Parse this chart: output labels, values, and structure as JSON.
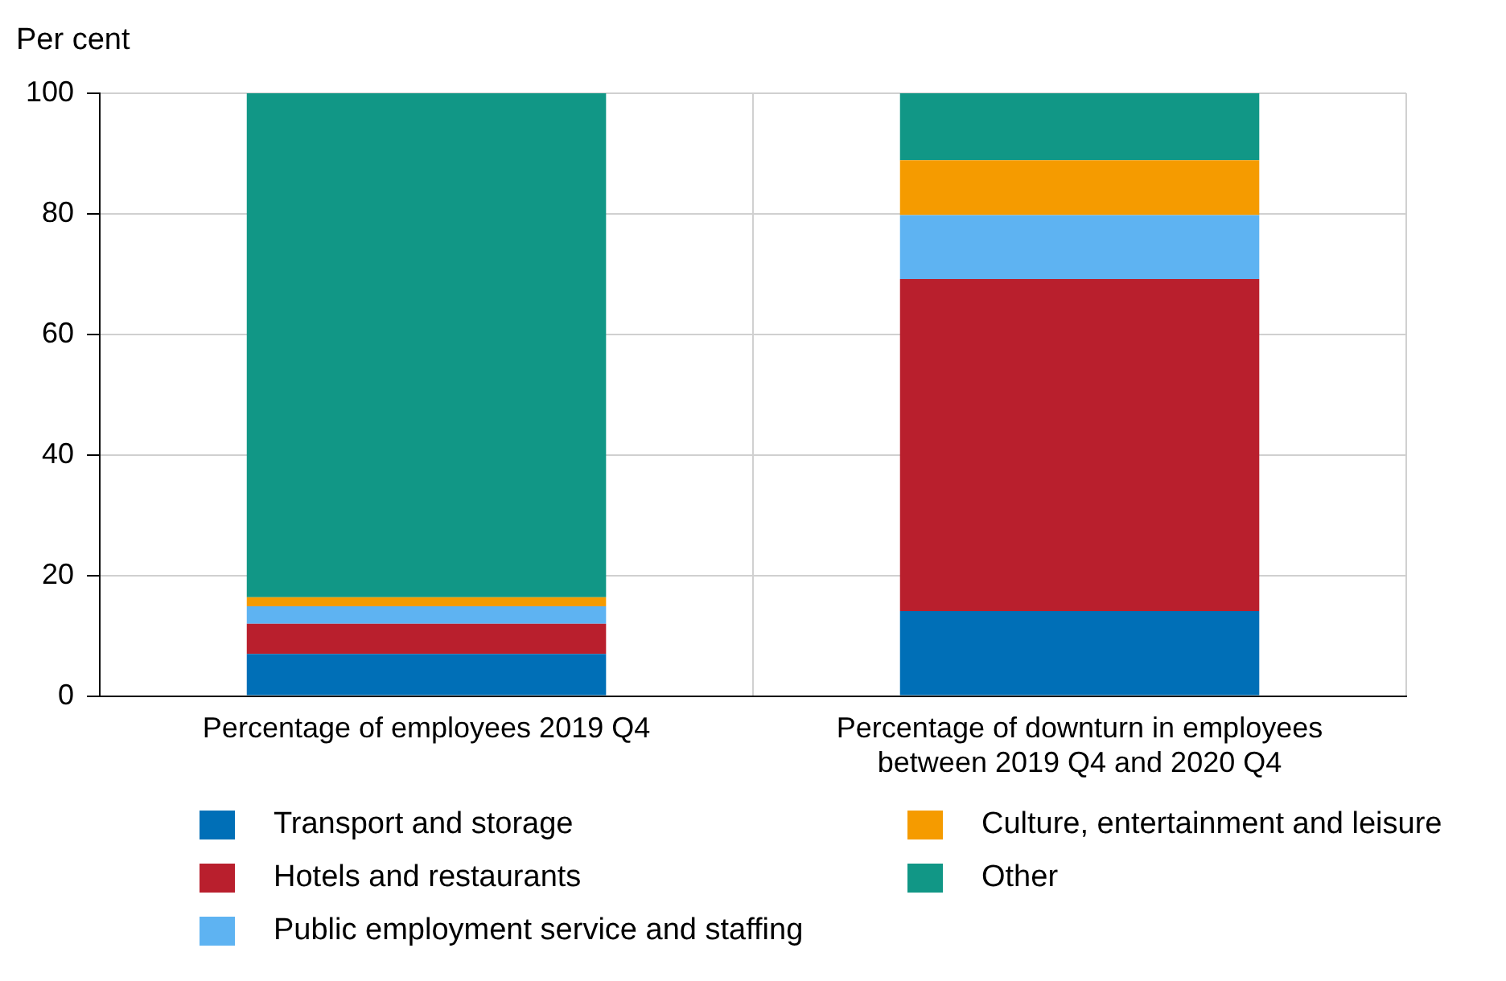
{
  "chart_data": {
    "type": "bar",
    "ylabel": "Per cent",
    "stacked": true,
    "categories": [
      "Percentage of employees 2019 Q4",
      "Percentage of downturn in employees between 2019 Q4 and 2020 Q4"
    ],
    "series": [
      {
        "name": "Transport and storage",
        "color": "#006fb7",
        "values": [
          7.0,
          14.1
        ]
      },
      {
        "name": "Hotels and restaurants",
        "color": "#b91f2d",
        "values": [
          5.0,
          55.1
        ]
      },
      {
        "name": "Public employment service and staffing",
        "color": "#5eb3f2",
        "values": [
          2.9,
          10.6
        ]
      },
      {
        "name": "Culture, entertainment and leisure",
        "color": "#f59b00",
        "values": [
          1.5,
          9.1
        ]
      },
      {
        "name": "Other",
        "color": "#119786",
        "values": [
          83.6,
          11.1
        ]
      }
    ],
    "ylim": [
      0,
      100
    ],
    "yticks": [
      0,
      20,
      40,
      60,
      80,
      100
    ],
    "grid": true,
    "legend": "bottom"
  }
}
